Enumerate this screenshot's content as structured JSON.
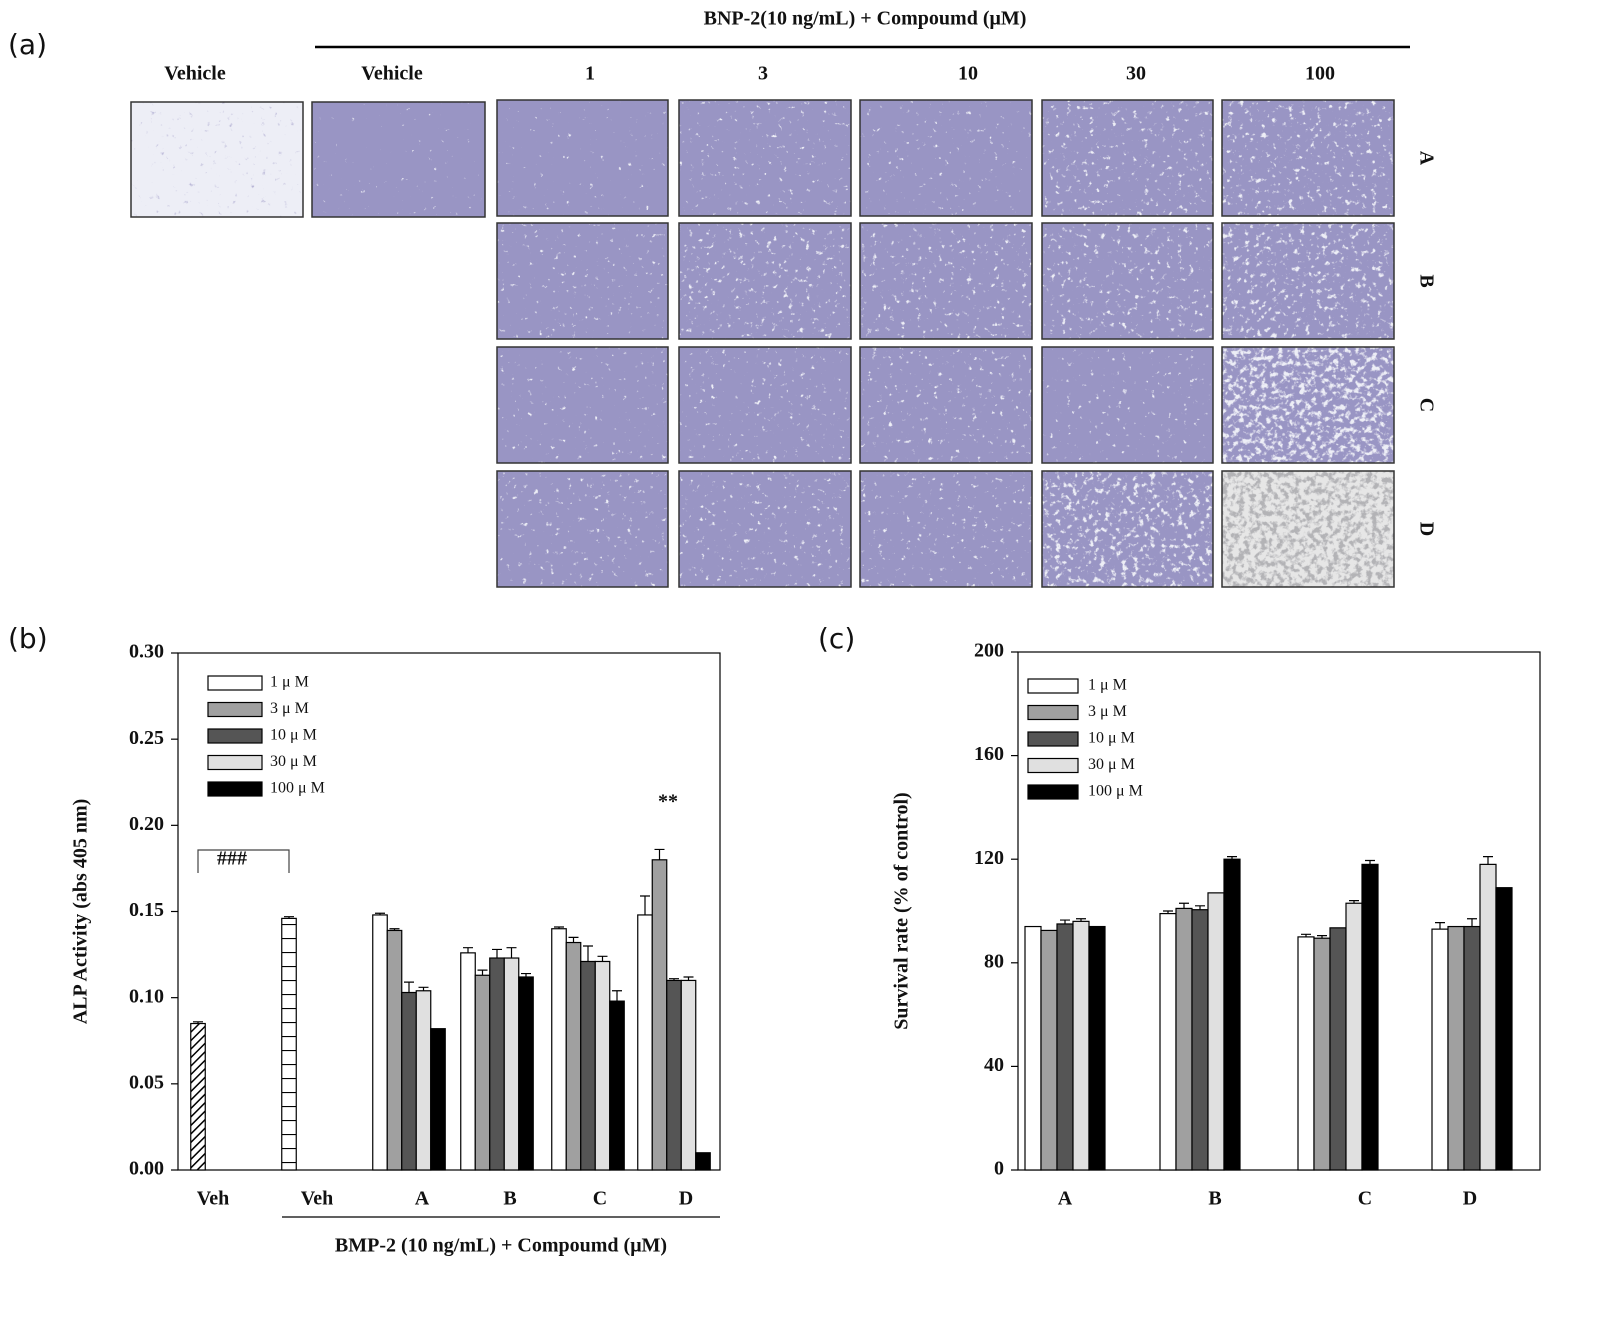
{
  "panel_a": {
    "label": "(a)",
    "header": "BNP-2(10 ng/mL) + Compoumd (μM)",
    "columns": [
      "Vehicle",
      "Vehicle",
      "1",
      "3",
      "10",
      "30",
      "100"
    ],
    "rows": [
      "A",
      "B",
      "C",
      "D"
    ]
  },
  "chart_data": [
    {
      "type": "bar",
      "panel_label": "(b)",
      "ylabel": "ALP Activity (abs 405 nm)",
      "xlabel": "BMP-2 (10 ng/mL) + Compoumd (μM)",
      "categories": [
        "Veh",
        "Veh",
        "A",
        "B",
        "C",
        "D"
      ],
      "vehicle_values": [
        0.085,
        0.146,
        null,
        null,
        null,
        null
      ],
      "vehicle_errors": [
        0.001,
        0.001,
        null,
        null,
        null,
        null
      ],
      "series": [
        {
          "name": "1 μ M",
          "color": "#ffffff",
          "values": [
            null,
            null,
            0.148,
            0.126,
            0.14,
            0.148
          ],
          "errors": [
            null,
            null,
            0.001,
            0.003,
            0.001,
            0.011
          ]
        },
        {
          "name": "3 μ M",
          "color": "#a0a0a0",
          "values": [
            null,
            null,
            0.139,
            0.113,
            0.132,
            0.18
          ],
          "errors": [
            null,
            null,
            0.001,
            0.003,
            0.003,
            0.006
          ]
        },
        {
          "name": "10 μ M",
          "color": "#555555",
          "values": [
            null,
            null,
            0.103,
            0.123,
            0.121,
            0.11
          ],
          "errors": [
            null,
            null,
            0.006,
            0.005,
            0.009,
            0.001
          ]
        },
        {
          "name": "30 μ M",
          "color": "#e0e0e0",
          "values": [
            null,
            null,
            0.104,
            0.123,
            0.121,
            0.11
          ],
          "errors": [
            null,
            null,
            0.002,
            0.006,
            0.003,
            0.002
          ]
        },
        {
          "name": "100 μ M",
          "color": "#000000",
          "values": [
            null,
            null,
            0.082,
            0.112,
            0.098,
            0.01
          ],
          "errors": [
            null,
            null,
            null,
            0.002,
            0.006,
            null
          ]
        }
      ],
      "ylim": [
        0,
        0.3
      ],
      "yticks": [
        {
          "value": 0,
          "label": "0.00"
        },
        0.05,
        {
          "value": 0.1,
          "label": "0.10"
        },
        0.15,
        {
          "value": 0.2,
          "label": "0.20"
        },
        0.25,
        {
          "value": 0.3,
          "label": "0.30"
        }
      ],
      "legend": "upper left",
      "annotations": [
        {
          "text": "###"
        },
        {
          "text": "**"
        }
      ]
    },
    {
      "type": "bar",
      "panel_label": "(c)",
      "ylabel": "Survival rate (% of control)",
      "categories": [
        "A",
        "B",
        "C",
        "D"
      ],
      "series": [
        {
          "name": "1 μ M",
          "color": "#ffffff",
          "values": [
            94,
            99,
            90,
            93
          ],
          "errors": [
            null,
            1,
            1,
            2.5
          ]
        },
        {
          "name": "3 μ M",
          "color": "#a0a0a0",
          "values": [
            92.5,
            101,
            89.5,
            94
          ],
          "errors": [
            null,
            2,
            1,
            null
          ]
        },
        {
          "name": "10 μ M",
          "color": "#555555",
          "values": [
            95,
            100.5,
            93.5,
            94
          ],
          "errors": [
            1.5,
            1.5,
            null,
            3
          ]
        },
        {
          "name": "30 μ M",
          "color": "#e0e0e0",
          "values": [
            96,
            107,
            103,
            118
          ],
          "errors": [
            1,
            null,
            1,
            3
          ]
        },
        {
          "name": "100 μ M",
          "color": "#000000",
          "values": [
            94,
            120,
            118,
            109
          ],
          "errors": [
            null,
            1,
            1.5,
            null
          ]
        }
      ],
      "ylim": [
        0,
        200
      ],
      "yticks": [
        0,
        40,
        80,
        120,
        160,
        200
      ],
      "legend": "upper left"
    }
  ]
}
